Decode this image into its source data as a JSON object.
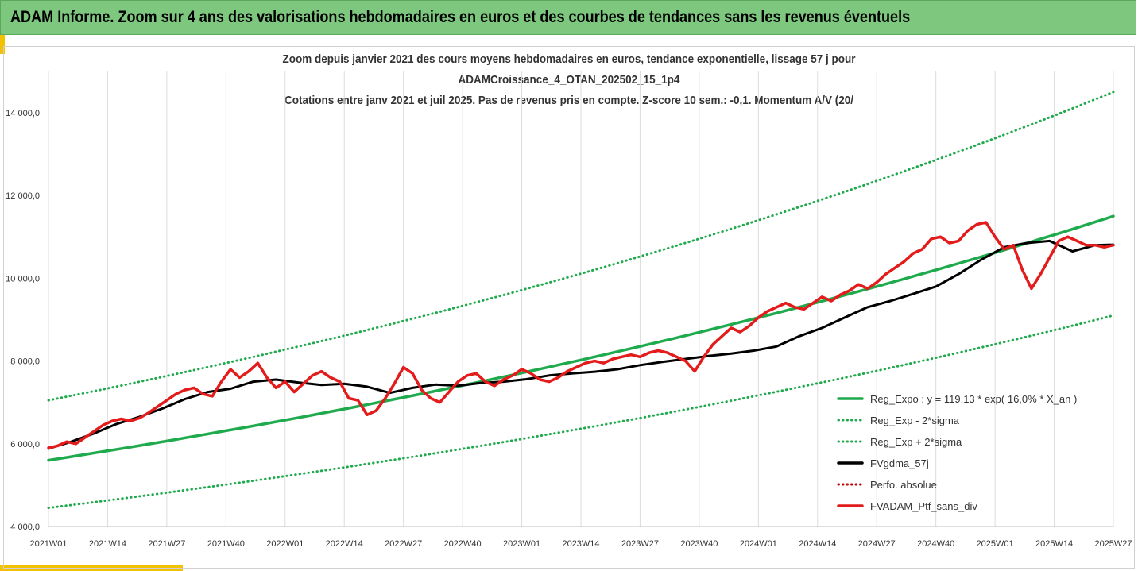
{
  "header": {
    "title": "ADAM Informe. Zoom sur 4 ans des valorisations hebdomadaires en euros et des courbes de tendances sans les revenus éventuels"
  },
  "chart_data": {
    "type": "line",
    "title_lines": [
      "Zoom depuis janvier 2021 des cours moyens hebdomadaires  en euros, tendance exponentielle, lissage 57 j pour",
      "ADAMCroissance_4_OTAN_202502_15_1p4",
      "Cotations entre janv 2021 et juil 2025. Pas de revenus pris en compte. Z-score 10 sem.: -0,1. Momentum A/V (20/"
    ],
    "x_tick_labels": [
      "2021W01",
      "2021W14",
      "2021W27",
      "2021W40",
      "2022W01",
      "2022W14",
      "2022W27",
      "2022W40",
      "2023W01",
      "2023W14",
      "2023W27",
      "2023W40",
      "2024W01",
      "2024W14",
      "2024W27",
      "2024W40",
      "2025W01",
      "2025W14",
      "2025W27"
    ],
    "x_range_weeks": [
      0,
      234
    ],
    "y_ticks": [
      4000,
      6000,
      8000,
      10000,
      12000,
      14000
    ],
    "y_tick_labels": [
      "4 000,0",
      "6 000,0",
      "8 000,0",
      "10 000,0",
      "12 000,0",
      "14 000,0"
    ],
    "ylim": [
      4000,
      14900
    ],
    "grid": "vertical",
    "legend_position": "bottom-right",
    "series": [
      {
        "name": "Reg_Expo : y = 119,13 * exp( 16,0% *  X_an )",
        "color": "#1faa4d",
        "style": "solid",
        "x": [
          0,
          234
        ],
        "growth_rate": 0.16,
        "y_start": 5600,
        "y_end": 11500
      },
      {
        "name": "Reg_Exp - 2*sigma",
        "color": "#1faa4d",
        "style": "dotted",
        "x": [
          0,
          234
        ],
        "growth_rate": 0.16,
        "y_start": 4450,
        "y_end": 9100
      },
      {
        "name": "Reg_Exp + 2*sigma",
        "color": "#1faa4d",
        "style": "dotted",
        "x": [
          0,
          234
        ],
        "growth_rate": 0.16,
        "y_start": 7050,
        "y_end": 14500
      },
      {
        "name": "FVgdma_57j",
        "color": "#000000",
        "style": "solid",
        "x": [
          0,
          5,
          10,
          15,
          20,
          25,
          30,
          35,
          40,
          45,
          50,
          55,
          60,
          65,
          70,
          75,
          80,
          85,
          90,
          95,
          100,
          105,
          110,
          115,
          120,
          125,
          130,
          135,
          140,
          145,
          150,
          155,
          160,
          165,
          170,
          175,
          180,
          185,
          190,
          195,
          200,
          205,
          210,
          215,
          220,
          225,
          230,
          234
        ],
        "y": [
          5880,
          6050,
          6250,
          6480,
          6650,
          6850,
          7080,
          7250,
          7330,
          7500,
          7550,
          7480,
          7420,
          7450,
          7380,
          7230,
          7350,
          7430,
          7400,
          7470,
          7500,
          7560,
          7650,
          7700,
          7740,
          7800,
          7900,
          7980,
          8050,
          8120,
          8180,
          8250,
          8350,
          8600,
          8800,
          9050,
          9300,
          9450,
          9620,
          9800,
          10100,
          10450,
          10750,
          10850,
          10900,
          10650,
          10800,
          10810
        ]
      },
      {
        "name": "Perfo. absolue",
        "color": "#c00000",
        "style": "dotted",
        "x": [],
        "y": []
      },
      {
        "name": "FVADAM_Ptf_sans_div",
        "color": "#e31b1b",
        "style": "solid",
        "x": [
          0,
          2,
          4,
          6,
          8,
          10,
          12,
          14,
          16,
          18,
          20,
          22,
          24,
          26,
          28,
          30,
          32,
          34,
          36,
          38,
          40,
          42,
          44,
          46,
          48,
          50,
          52,
          54,
          56,
          58,
          60,
          62,
          64,
          66,
          68,
          70,
          72,
          74,
          76,
          78,
          80,
          82,
          84,
          86,
          88,
          90,
          92,
          94,
          96,
          98,
          100,
          102,
          104,
          106,
          108,
          110,
          112,
          114,
          116,
          118,
          120,
          122,
          124,
          126,
          128,
          130,
          132,
          134,
          136,
          138,
          140,
          142,
          144,
          146,
          148,
          150,
          152,
          154,
          156,
          158,
          160,
          162,
          164,
          166,
          168,
          170,
          172,
          174,
          176,
          178,
          180,
          182,
          184,
          186,
          188,
          190,
          192,
          194,
          196,
          198,
          200,
          202,
          204,
          206,
          208,
          210,
          212,
          214,
          216,
          218,
          220,
          222,
          224,
          226,
          228,
          230,
          232,
          234
        ],
        "y": [
          5900,
          5950,
          6050,
          6000,
          6150,
          6300,
          6450,
          6550,
          6600,
          6550,
          6620,
          6750,
          6900,
          7050,
          7200,
          7300,
          7350,
          7200,
          7150,
          7500,
          7800,
          7600,
          7750,
          7950,
          7600,
          7350,
          7500,
          7250,
          7450,
          7650,
          7750,
          7600,
          7500,
          7100,
          7050,
          6700,
          6800,
          7100,
          7450,
          7850,
          7700,
          7300,
          7100,
          7000,
          7250,
          7500,
          7650,
          7700,
          7500,
          7400,
          7550,
          7650,
          7800,
          7700,
          7550,
          7500,
          7600,
          7750,
          7850,
          7950,
          8000,
          7950,
          8050,
          8100,
          8150,
          8100,
          8200,
          8250,
          8200,
          8100,
          8000,
          7750,
          8100,
          8400,
          8600,
          8800,
          8700,
          8850,
          9050,
          9200,
          9300,
          9400,
          9300,
          9250,
          9400,
          9550,
          9450,
          9600,
          9700,
          9850,
          9750,
          9900,
          10100,
          10250,
          10400,
          10600,
          10700,
          10950,
          11000,
          10850,
          10900,
          11150,
          11300,
          11350,
          11000,
          10700,
          10800,
          10200,
          9750,
          10100,
          10500,
          10900,
          11000,
          10900,
          10800,
          10800,
          10750,
          10800
        ]
      }
    ]
  }
}
